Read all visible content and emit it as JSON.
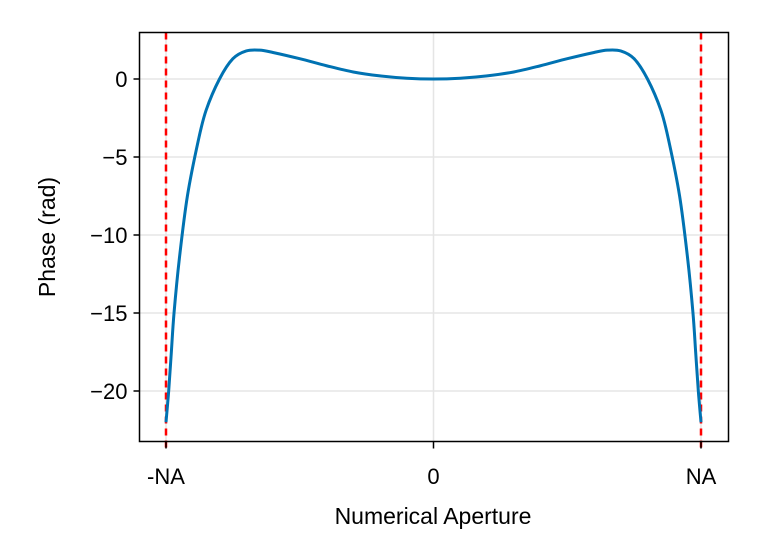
{
  "chart_data": {
    "type": "line",
    "title": "",
    "xlabel": "Numerical Aperture",
    "ylabel": "Phase (rad)",
    "xticks": [
      {
        "pos": -1,
        "label": "-NA"
      },
      {
        "pos": 0,
        "label": "0"
      },
      {
        "pos": 1,
        "label": "NA"
      }
    ],
    "yticks": [
      {
        "value": 0,
        "label": "0"
      },
      {
        "value": -5,
        "label": "−5"
      },
      {
        "value": -10,
        "label": "−10"
      },
      {
        "value": -15,
        "label": "−15"
      },
      {
        "value": -20,
        "label": "−20"
      }
    ],
    "xlim": [
      -1.1,
      1.1
    ],
    "ylim": [
      -23.3,
      2.9
    ],
    "grid": true,
    "series": [
      {
        "name": "phase",
        "color": "#0072b2",
        "x": [
          -1.0,
          -0.99,
          -0.98,
          -0.97,
          -0.95,
          -0.92,
          -0.88,
          -0.85,
          -0.8,
          -0.75,
          -0.7,
          -0.65,
          -0.6,
          -0.5,
          -0.4,
          -0.3,
          -0.2,
          -0.1,
          0.0,
          0.1,
          0.2,
          0.3,
          0.4,
          0.5,
          0.6,
          0.65,
          0.7,
          0.75,
          0.8,
          0.85,
          0.88,
          0.92,
          0.95,
          0.97,
          0.98,
          0.99,
          1.0
        ],
        "y": [
          -22.0,
          -20.0,
          -17.5,
          -15.0,
          -11.5,
          -7.5,
          -4.0,
          -2.0,
          0.0,
          1.3,
          1.8,
          1.85,
          1.7,
          1.3,
          0.85,
          0.45,
          0.2,
          0.05,
          0.0,
          0.05,
          0.2,
          0.45,
          0.85,
          1.3,
          1.7,
          1.85,
          1.8,
          1.3,
          0.0,
          -2.0,
          -4.0,
          -7.5,
          -11.5,
          -15.0,
          -17.5,
          -20.0,
          -22.0
        ]
      }
    ],
    "vlines": [
      {
        "x": -1,
        "color": "#ff0000",
        "style": "dashed"
      },
      {
        "x": 1,
        "color": "#ff0000",
        "style": "dashed"
      }
    ]
  }
}
